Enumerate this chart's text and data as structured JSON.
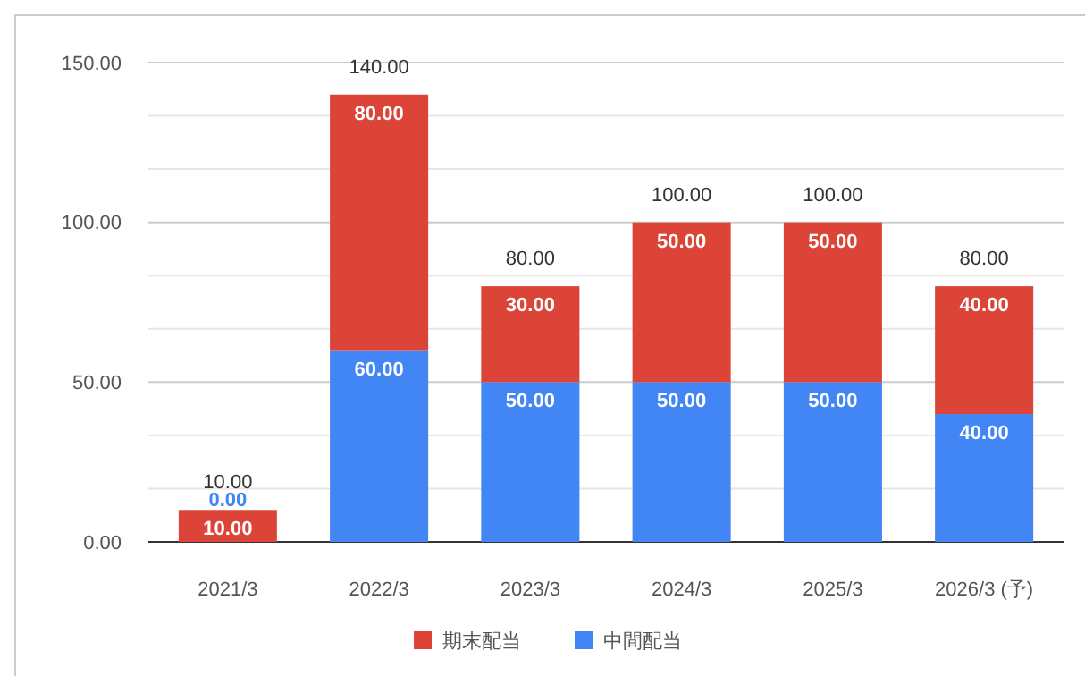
{
  "chart_data": {
    "type": "bar",
    "stacked": true,
    "categories": [
      "2021/3",
      "2022/3",
      "2023/3",
      "2024/3",
      "2025/3",
      "2026/3 (予)"
    ],
    "series": [
      {
        "name": "中間配当",
        "color": "#4285f4",
        "values": [
          0,
          60,
          50,
          50,
          50,
          40
        ],
        "value_labels": [
          "0.00",
          "60.00",
          "50.00",
          "50.00",
          "50.00",
          "40.00"
        ]
      },
      {
        "name": "期末配当",
        "color": "#db4437",
        "values": [
          10,
          80,
          30,
          50,
          50,
          40
        ],
        "value_labels": [
          "10.00",
          "80.00",
          "30.00",
          "50.00",
          "50.00",
          "40.00"
        ]
      }
    ],
    "totals": [
      "10.00",
      "140.00",
      "80.00",
      "100.00",
      "100.00",
      "80.00"
    ],
    "ylim": [
      0,
      150
    ],
    "yticks": [
      {
        "value": 0,
        "label": "0.00"
      },
      {
        "value": 16.67,
        "label": null
      },
      {
        "value": 33.33,
        "label": null
      },
      {
        "value": 50,
        "label": "50.00"
      },
      {
        "value": 66.67,
        "label": null
      },
      {
        "value": 83.33,
        "label": null
      },
      {
        "value": 100,
        "label": "100.00"
      },
      {
        "value": 116.67,
        "label": null
      },
      {
        "value": 133.33,
        "label": null
      },
      {
        "value": 150,
        "label": "150.00"
      }
    ],
    "grid": true,
    "legend": "bottom"
  }
}
